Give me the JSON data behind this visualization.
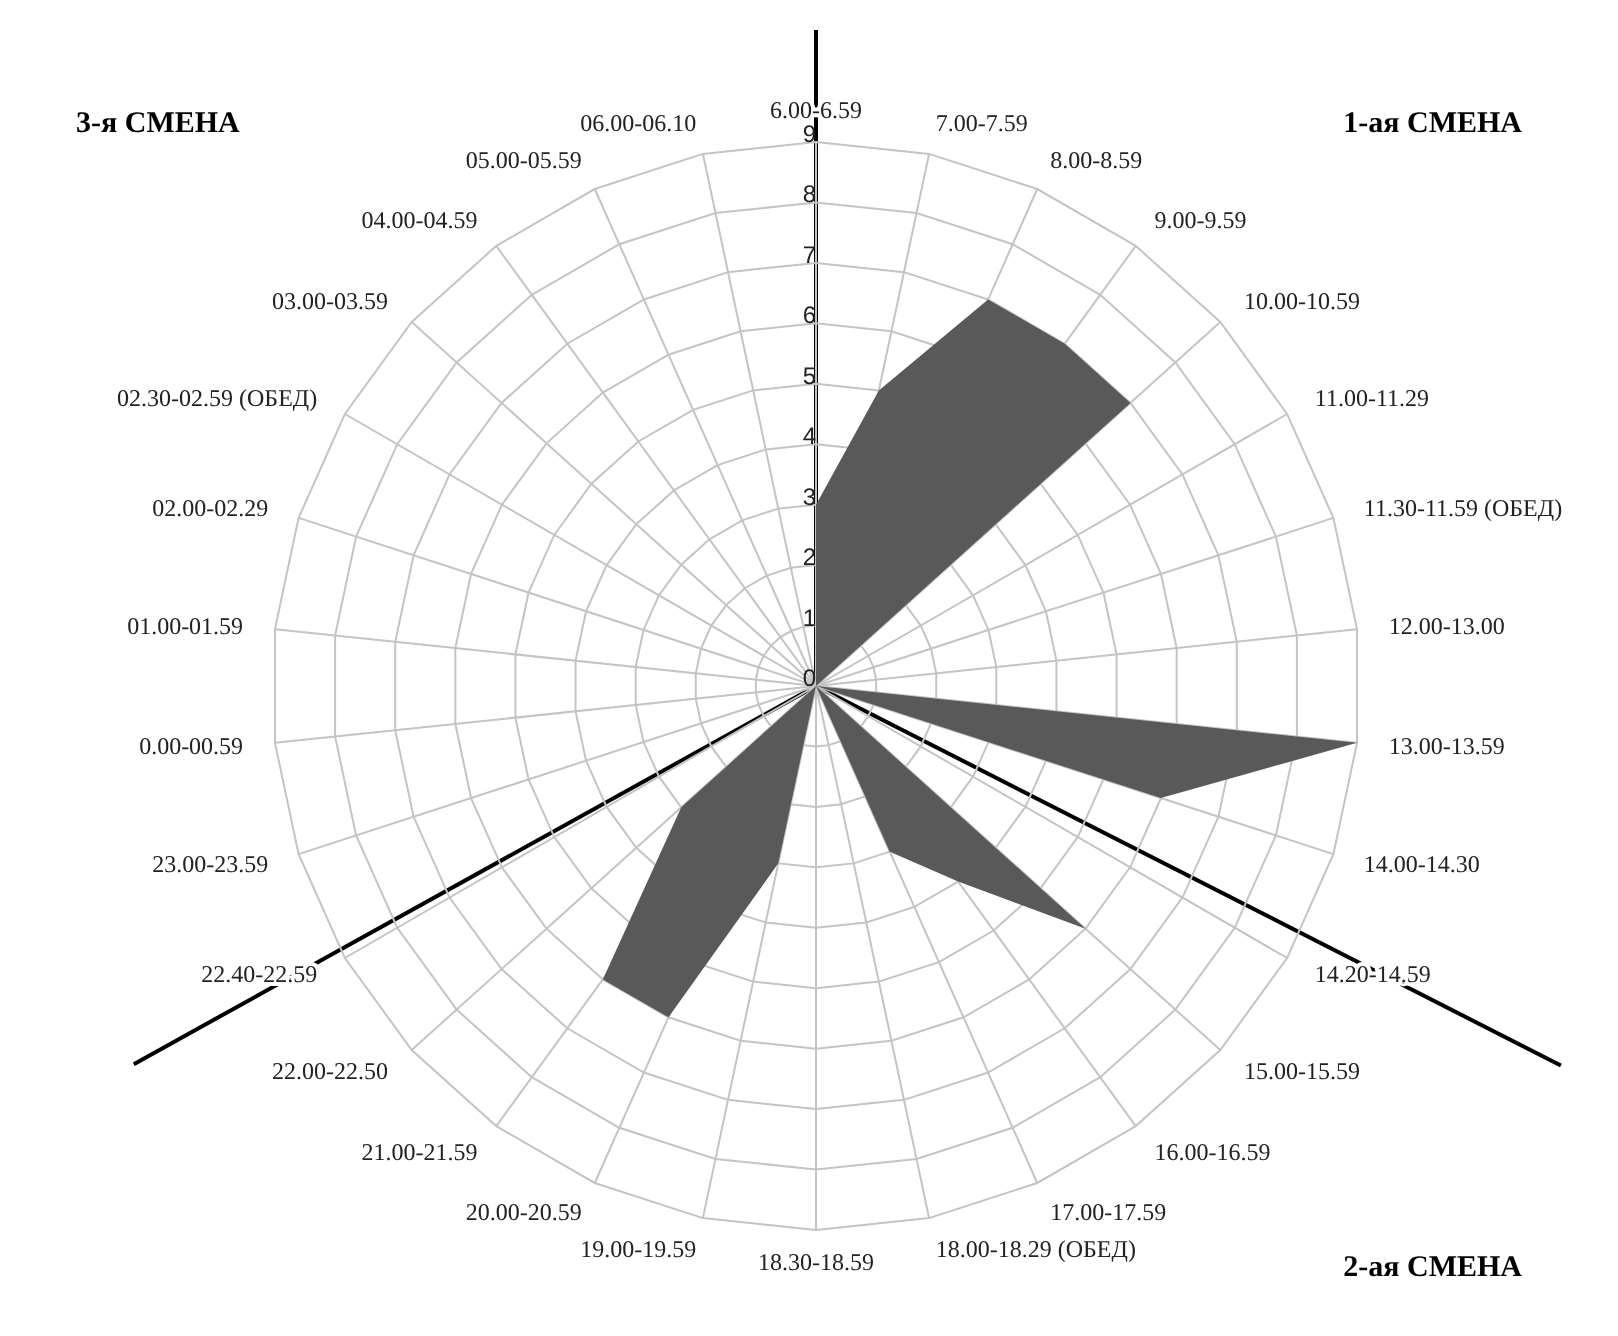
{
  "chart_data": {
    "type": "radar",
    "categories": [
      "6.00-6.59",
      "7.00-7.59",
      "8.00-8.59",
      "9.00-9.59",
      "10.00-10.59",
      "11.00-11.29",
      "11.30-11.59  (ОБЕД)",
      "12.00-13.00",
      "13.00-13.59",
      "14.00-14.30",
      "14.20-14.59",
      "15.00-15.59",
      "16.00-16.59",
      "17.00-17.59",
      "18.00-18.29  (ОБЕД)",
      "18.30-18.59",
      "19.00-19.59",
      "20.00-20.59",
      "21.00-21.59",
      "22.00-22.50",
      "22.40-22.59",
      "23.00-23.59",
      "0.00-00.59",
      "01.00-01.59",
      "02.00-02.29",
      "02.30-02.59  (ОБЕД)",
      "03.00-03.59",
      "04.00-04.59",
      "05.00-05.59",
      "06.00-06.10"
    ],
    "series": [
      {
        "color": "#595959",
        "values": [
          3,
          5,
          7,
          7,
          7,
          0,
          0,
          0,
          9,
          6,
          0,
          6,
          4,
          3,
          0,
          0,
          3,
          6,
          6,
          3,
          0,
          0,
          0,
          0,
          0,
          0,
          0,
          3,
          0,
          0
        ]
      }
    ],
    "ylim": [
      0,
      9
    ],
    "yticks": [
      0,
      1,
      2,
      3,
      4,
      5,
      6,
      7,
      8,
      9
    ],
    "grid": true,
    "annotations": [
      "3-я СМЕНА",
      "1-ая СМЕНА",
      "2-ая СМЕНА"
    ]
  }
}
